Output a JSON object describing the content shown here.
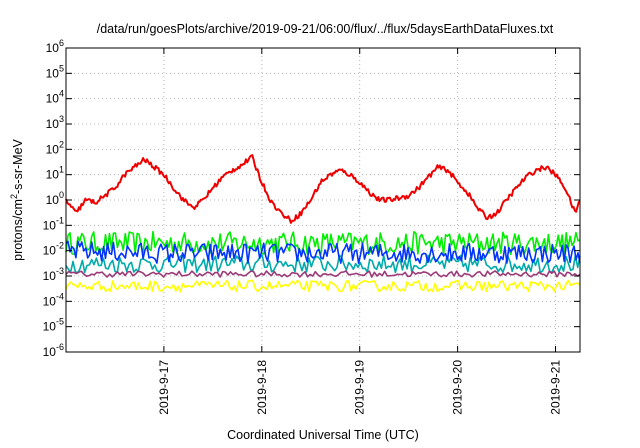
{
  "chart_data": {
    "type": "line",
    "title": "/data/run/goesPlots/archive/2019-09-21/06:00/flux/../flux/5daysEarthDataFluxes.txt",
    "xlabel": "Coordinated Universal Time (UTC)",
    "ylabel_parts": [
      "protons/cm",
      "2",
      "-s-sr-MeV"
    ],
    "y_scale": "log",
    "ylim": [
      1e-06,
      1000000.0
    ],
    "y_ticks": [
      {
        "base": "10",
        "exp": "6"
      },
      {
        "base": "10",
        "exp": "5"
      },
      {
        "base": "10",
        "exp": "4"
      },
      {
        "base": "10",
        "exp": "3"
      },
      {
        "base": "10",
        "exp": "2"
      },
      {
        "base": "10",
        "exp": "1"
      },
      {
        "base": "10",
        "exp": "0"
      },
      {
        "base": "10",
        "exp": "-1"
      },
      {
        "base": "10",
        "exp": "-2"
      },
      {
        "base": "10",
        "exp": "-3"
      },
      {
        "base": "10",
        "exp": "-4"
      },
      {
        "base": "10",
        "exp": "-5"
      },
      {
        "base": "10",
        "exp": "-6"
      }
    ],
    "xlim_days": [
      16.0,
      21.25
    ],
    "x_ticks": [
      "2019-9-17",
      "2019-9-18",
      "2019-9-19",
      "2019-9-20",
      "2019-9-21"
    ],
    "grid": true,
    "series": [
      {
        "color": "#00ee00",
        "x": [
          16.0,
          17.0,
          18.0,
          19.0,
          20.0,
          21.0,
          21.25
        ],
        "y": [
          0.02,
          0.02,
          0.02,
          0.02,
          0.02,
          0.02,
          0.02
        ]
      },
      {
        "color": "#00aaaa",
        "x": [
          16.0,
          17.0,
          18.0,
          19.0,
          20.0,
          21.0,
          21.25
        ],
        "y": [
          0.003,
          0.003,
          0.003,
          0.003,
          0.003,
          0.003,
          0.003
        ]
      },
      {
        "color": "#0033ff",
        "x": [
          16.0,
          17.0,
          18.0,
          19.0,
          20.0,
          21.0,
          21.25
        ],
        "y": [
          0.01,
          0.008,
          0.008,
          0.008,
          0.008,
          0.008,
          0.008
        ]
      },
      {
        "color": "#9b3a78",
        "x": [
          16.0,
          17.0,
          18.0,
          19.0,
          20.0,
          21.0,
          21.25
        ],
        "y": [
          0.0012,
          0.0012,
          0.0012,
          0.0012,
          0.0012,
          0.0012,
          0.0012
        ]
      },
      {
        "color": "#ffff00",
        "x": [
          16.0,
          17.0,
          18.0,
          19.0,
          20.0,
          21.0,
          21.25
        ],
        "y": [
          0.0004,
          0.0004,
          0.0004,
          0.0004,
          0.0004,
          0.0004,
          0.0004
        ]
      },
      {
        "color": "#ee0000",
        "x": [
          16.0,
          16.1,
          16.2,
          16.3,
          16.4,
          16.5,
          16.6,
          16.7,
          16.8,
          16.9,
          17.0,
          17.1,
          17.2,
          17.3,
          17.4,
          17.5,
          17.6,
          17.7,
          17.8,
          17.9,
          18.0,
          18.1,
          18.2,
          18.3,
          18.4,
          18.5,
          18.6,
          18.7,
          18.8,
          18.9,
          19.0,
          19.1,
          19.2,
          19.3,
          19.4,
          19.5,
          19.6,
          19.7,
          19.8,
          19.9,
          20.0,
          20.1,
          20.2,
          20.3,
          20.4,
          20.5,
          20.6,
          20.7,
          20.8,
          20.9,
          21.0,
          21.1,
          21.2,
          21.25
        ],
        "y": [
          1.0,
          0.3,
          1.0,
          0.8,
          1.5,
          3,
          10,
          20,
          40,
          20,
          10,
          3,
          1.0,
          0.5,
          1.0,
          3,
          8,
          15,
          25,
          50,
          5,
          0.8,
          0.3,
          0.15,
          0.3,
          1.0,
          5,
          10,
          15,
          10,
          5,
          2,
          1.0,
          1.0,
          1.2,
          1.5,
          3,
          8,
          20,
          15,
          5,
          2,
          0.5,
          0.2,
          0.3,
          1.0,
          3,
          8,
          15,
          20,
          10,
          3,
          0.3,
          1.0
        ]
      }
    ]
  }
}
